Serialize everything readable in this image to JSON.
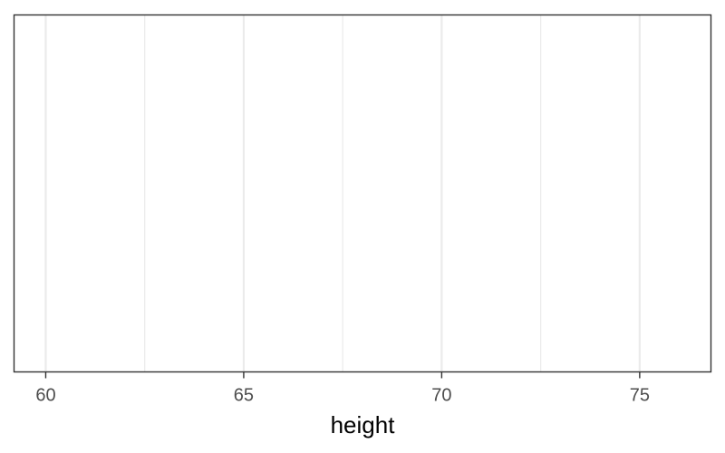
{
  "chart_data": {
    "type": "scatter",
    "title": "",
    "xlabel": "height",
    "ylabel": "",
    "xlim": [
      59.2,
      76.8
    ],
    "x_ticks": [
      60,
      65,
      70,
      75
    ],
    "x_minor_ticks": [
      62.5,
      67.5,
      72.5
    ],
    "grid": true,
    "legend": "none",
    "series": [],
    "colors": {
      "background": "#ffffff",
      "panel_border": "#333333",
      "major_grid": "#ebebeb",
      "minor_grid": "#ebebeb",
      "tick": "#333333",
      "tick_label": "#4d4d4d"
    }
  }
}
